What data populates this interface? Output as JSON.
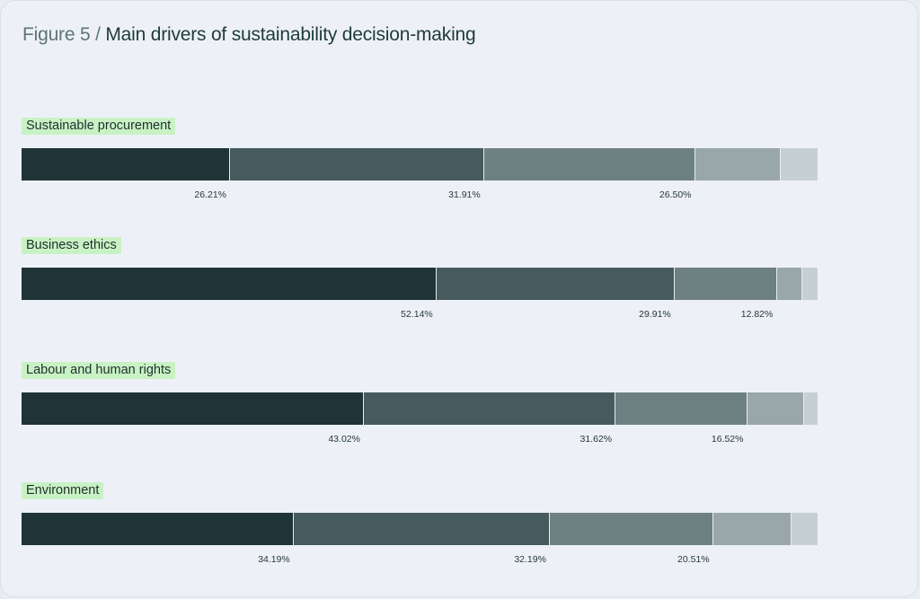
{
  "title": {
    "prefix": "Figure 5 /",
    "text": "Main drivers of sustainability decision-making"
  },
  "colors": [
    "#1f3437",
    "#465b5d",
    "#6e8182",
    "#9aa7a9",
    "#c6cfd4"
  ],
  "chart_data": {
    "type": "bar",
    "orientation": "horizontal-stacked-100",
    "title": "Figure 5 / Main drivers of sustainability decision-making",
    "categories": [
      "Sustainable procurement",
      "Business ethics",
      "Labour and human rights",
      "Environment"
    ],
    "rows": [
      {
        "label": "Sustainable procurement",
        "values": [
          26.21,
          31.91,
          26.5,
          10.7,
          4.68
        ],
        "labels": [
          "26.21%",
          "31.91%",
          "26.50%",
          "",
          ""
        ]
      },
      {
        "label": "Business ethics",
        "values": [
          52.14,
          29.91,
          12.82,
          3.2,
          1.93
        ],
        "labels": [
          "52.14%",
          "29.91%",
          "12.82%",
          "",
          ""
        ]
      },
      {
        "label": "Labour and human rights",
        "values": [
          43.02,
          31.62,
          16.52,
          7.1,
          1.74
        ],
        "labels": [
          "43.02%",
          "31.62%",
          "16.52%",
          "",
          ""
        ]
      },
      {
        "label": "Environment",
        "values": [
          34.19,
          32.19,
          20.51,
          9.8,
          3.31
        ],
        "labels": [
          "34.19%",
          "32.19%",
          "20.51%",
          "",
          ""
        ]
      }
    ],
    "xlim": [
      0,
      100
    ],
    "grid": false,
    "legend": "none"
  }
}
